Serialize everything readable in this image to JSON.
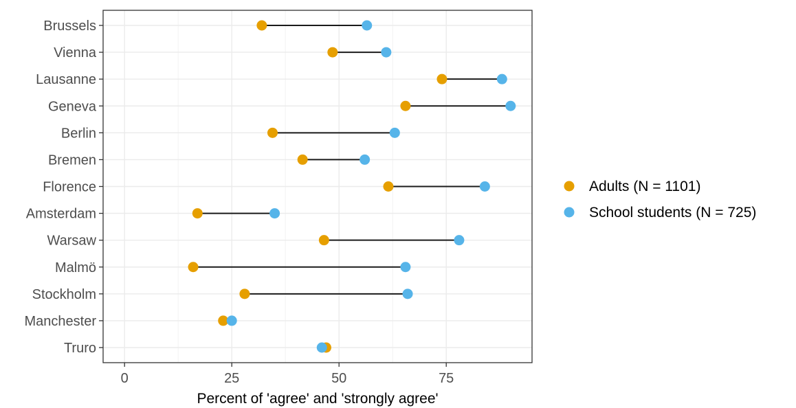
{
  "chart_data": {
    "type": "dumbbell",
    "title": "",
    "xlabel": "Percent of 'agree' and 'strongly agree'",
    "ylabel": "",
    "xlim": [
      -5,
      95
    ],
    "xticks": [
      0,
      25,
      50,
      75
    ],
    "grid": true,
    "legend_position": "right",
    "categories": [
      "Brussels",
      "Vienna",
      "Lausanne",
      "Geneva",
      "Berlin",
      "Bremen",
      "Florence",
      "Amsterdam",
      "Warsaw",
      "Malmö",
      "Stockholm",
      "Manchester",
      "Truro"
    ],
    "series": [
      {
        "name": "Adults (N = 1101)",
        "color": "#E69F00",
        "values": [
          32,
          48.5,
          74,
          65.5,
          34.5,
          41.5,
          61.5,
          17,
          46.5,
          16,
          28,
          23,
          47
        ]
      },
      {
        "name": "School students (N = 725)",
        "color": "#56B4E9",
        "values": [
          56.5,
          61,
          88,
          90,
          63,
          56,
          84,
          35,
          78,
          65.5,
          66,
          25,
          46
        ]
      }
    ]
  }
}
